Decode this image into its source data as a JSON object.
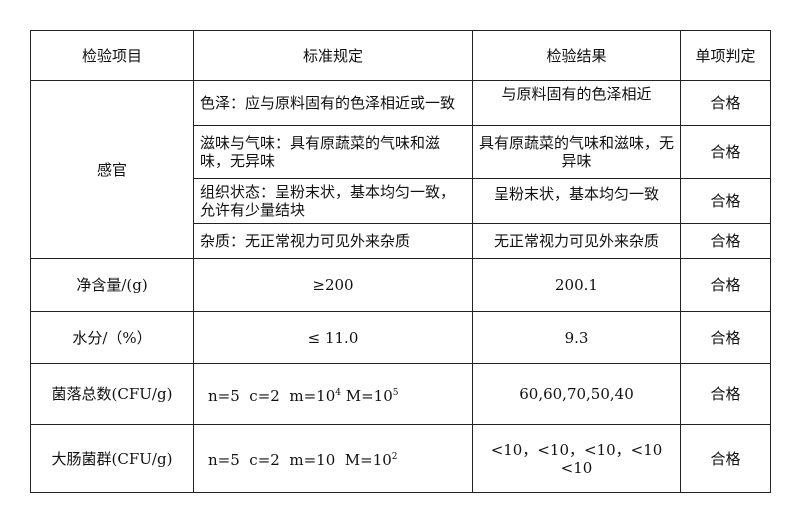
{
  "headers": [
    "检验项目",
    "标准规定",
    "检验结果",
    "单项判定"
  ],
  "sensory": {
    "item": "感官",
    "rows": [
      {
        "standard": "色泽：应与原料固有的色泽相近或一致",
        "result": "与原料固有的色泽相近",
        "verdict": "合格"
      },
      {
        "standard": "滋味与气味：具有原蔬菜的气味和滋味，无异味",
        "result": "具有原蔬菜的气味和滋味，无异味",
        "verdict": "合格"
      },
      {
        "standard": "组织状态：呈粉末状，基本均匀一致，允许有少量结块",
        "result": "呈粉末状，基本均匀一致",
        "verdict": "合格"
      },
      {
        "standard": "杂质：无正常视力可见外来杂质",
        "result": "无正常视力可见外来杂质",
        "verdict": "合格"
      }
    ]
  },
  "net": {
    "item": "净含量/(g)",
    "standard": "≥200",
    "result": "200.1",
    "verdict": "合格"
  },
  "water": {
    "item": "水分/（%）",
    "standard": "≤ 11.0",
    "result": "9.3",
    "verdict": "合格"
  },
  "bacteria": {
    "item": "菌落总数(CFU/g)",
    "std_pre": "n=5  c=2  m=10",
    "std_exp1": "4",
    "std_mid": " M=10",
    "std_exp2": "5",
    "result": "60,60,70,50,40",
    "verdict": "合格"
  },
  "coliform": {
    "item": "大肠菌群(CFU/g)",
    "std_pre": "n=5  c=2  m=10  M=10",
    "std_exp": "2",
    "result": "<10，<10，<10，<10 <10",
    "verdict": "合格"
  }
}
